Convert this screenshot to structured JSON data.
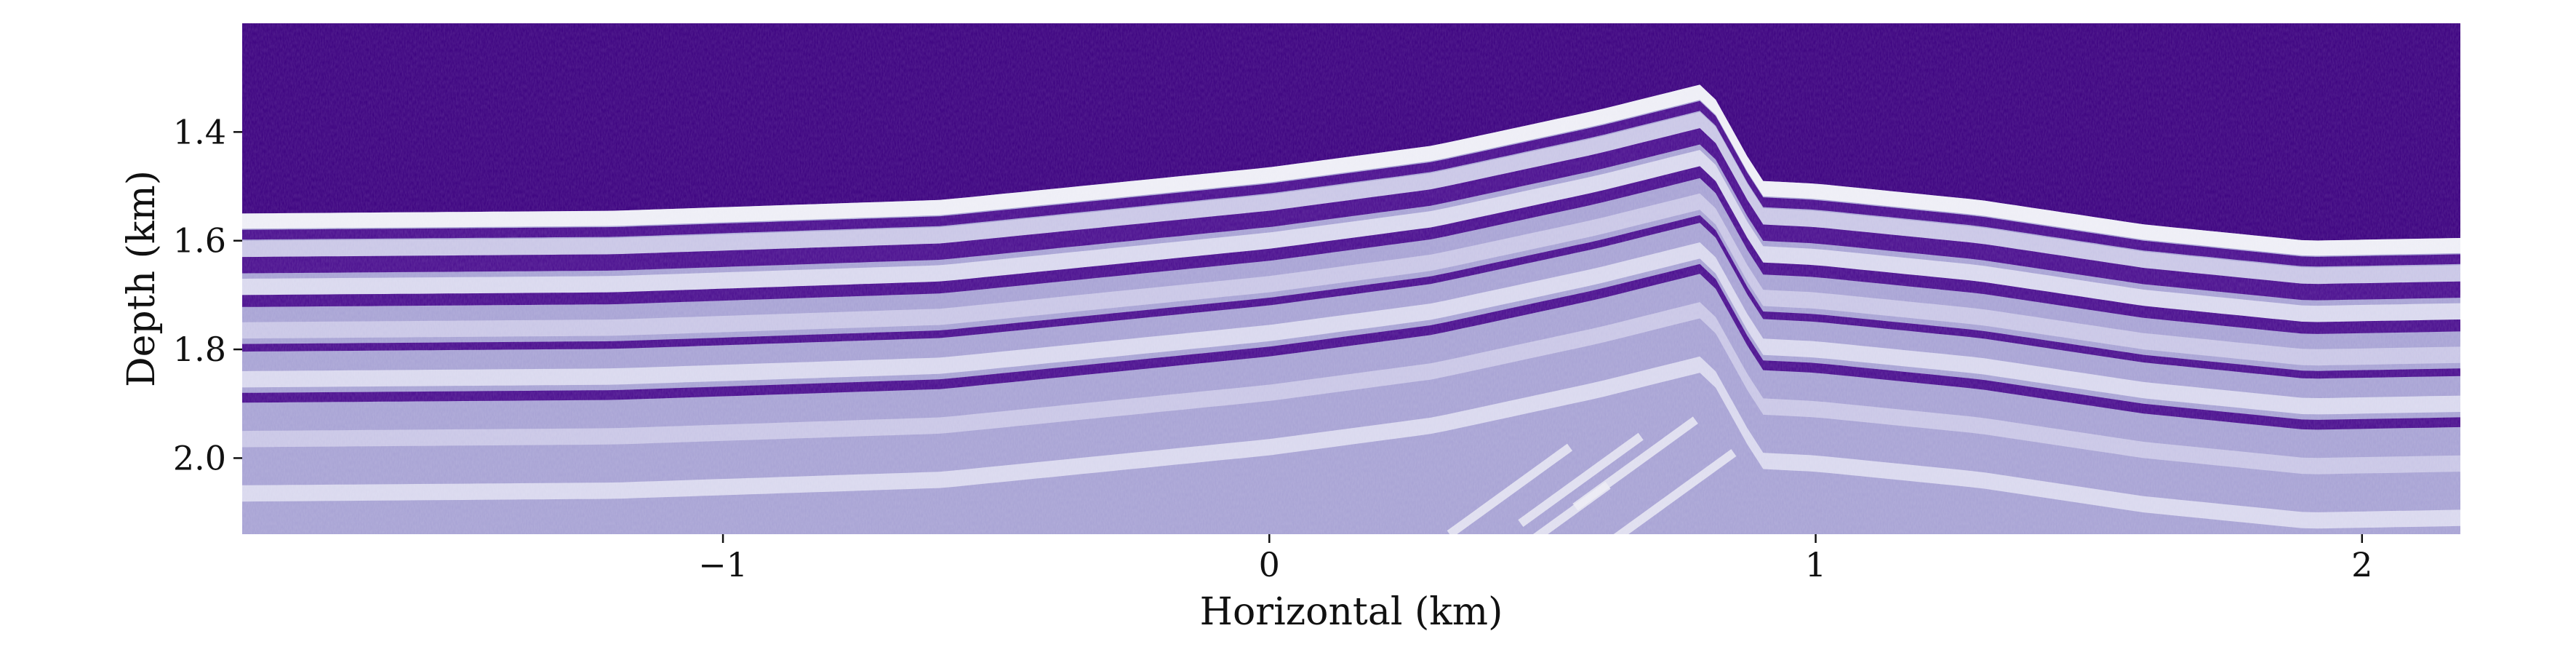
{
  "chart_data": {
    "type": "heatmap",
    "title": "",
    "xlabel": "Horizontal (km)",
    "ylabel": "Depth (km)",
    "xlim": [
      -1.88,
      2.18
    ],
    "ylim": [
      2.14,
      1.2
    ],
    "xticks": [
      {
        "value": -1,
        "label": "−1"
      },
      {
        "value": 0,
        "label": "0"
      },
      {
        "value": 1,
        "label": "1"
      },
      {
        "value": 2,
        "label": "2"
      }
    ],
    "yticks": [
      {
        "value": 1.4,
        "label": "1.4"
      },
      {
        "value": 1.6,
        "label": "1.6"
      },
      {
        "value": 1.8,
        "label": "1.8"
      },
      {
        "value": 2.0,
        "label": "2.0"
      }
    ],
    "grid": false,
    "colormap": {
      "low": "#3b007f",
      "mid": "#9d97cf",
      "high": "#f2f2f8"
    },
    "seabed_profile": [
      {
        "x": -1.88,
        "depth": 1.55
      },
      {
        "x": -1.2,
        "depth": 1.545
      },
      {
        "x": -0.6,
        "depth": 1.525
      },
      {
        "x": 0.0,
        "depth": 1.465
      },
      {
        "x": 0.3,
        "depth": 1.425
      },
      {
        "x": 0.6,
        "depth": 1.36
      },
      {
        "x": 0.8,
        "depth": 1.31
      },
      {
        "x": 0.9,
        "depth": 1.49
      },
      {
        "x": 1.0,
        "depth": 1.495
      },
      {
        "x": 1.3,
        "depth": 1.525
      },
      {
        "x": 1.6,
        "depth": 1.57
      },
      {
        "x": 1.9,
        "depth": 1.6
      },
      {
        "x": 2.18,
        "depth": 1.595
      }
    ],
    "dark_reflectors": [
      {
        "offset": 0.03,
        "thickness": 0.018
      },
      {
        "offset": 0.08,
        "thickness": 0.03
      },
      {
        "offset": 0.15,
        "thickness": 0.022
      },
      {
        "offset": 0.24,
        "thickness": 0.014
      },
      {
        "offset": 0.33,
        "thickness": 0.018
      }
    ]
  }
}
